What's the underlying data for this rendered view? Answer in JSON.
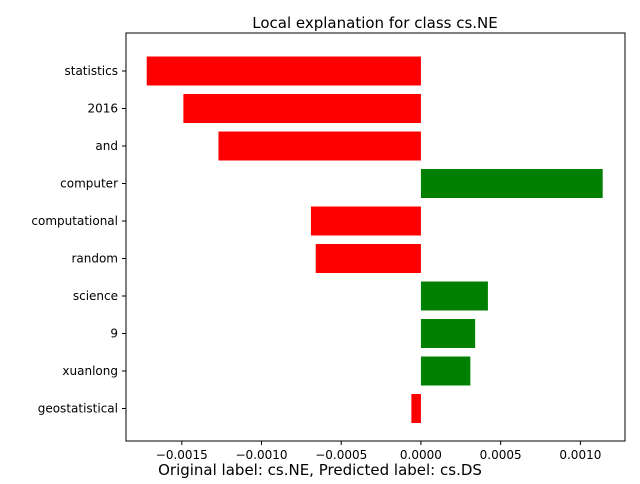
{
  "chart_data": {
    "type": "bar",
    "orientation": "horizontal",
    "title": "Local explanation for class cs.NE",
    "caption": "Original label: cs.NE, Predicted label: cs.DS",
    "xlabel": "",
    "ylabel": "",
    "categories": [
      "statistics",
      "2016",
      "and",
      "computer",
      "computational",
      "random",
      "science",
      "9",
      "xuanlong",
      "geostatistical"
    ],
    "values": [
      -0.00172,
      -0.00149,
      -0.00127,
      0.00114,
      -0.00069,
      -0.00066,
      0.00042,
      0.00034,
      0.00031,
      -6e-05
    ],
    "xlim": [
      -0.00185,
      0.00128
    ],
    "xticks": [
      -0.0015,
      -0.001,
      -0.0005,
      0.0,
      0.0005,
      0.001
    ],
    "xtick_labels": [
      "−0.0015",
      "−0.0010",
      "−0.0005",
      "0.0000",
      "0.0005",
      "0.0010"
    ],
    "grid": false,
    "colors": {
      "positive": "#008000",
      "negative": "#ff0000"
    }
  }
}
